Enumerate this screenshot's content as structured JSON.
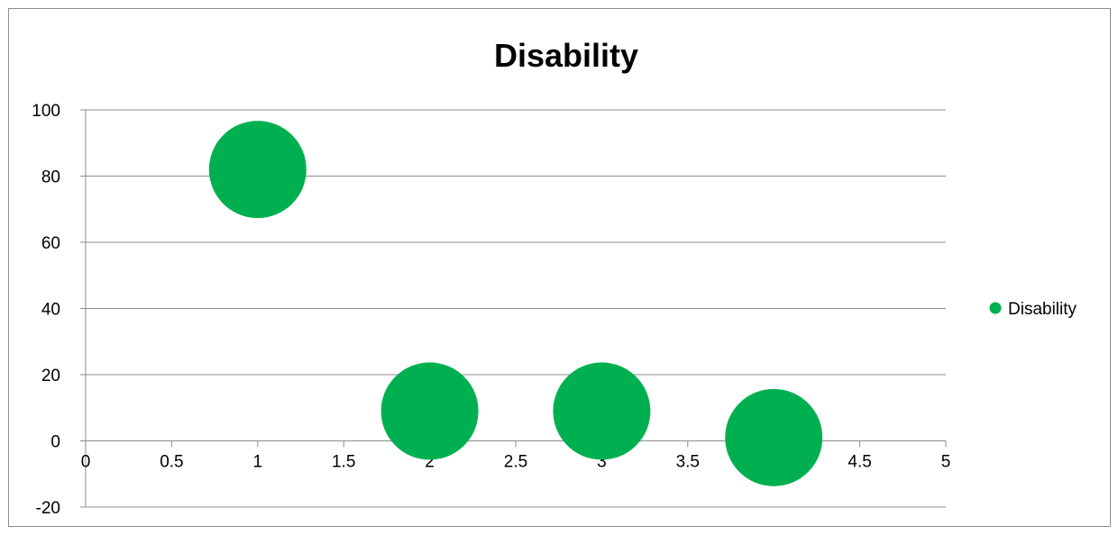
{
  "chart_data": {
    "type": "bubble",
    "title": "Disability",
    "xlabel": "",
    "ylabel": "",
    "xlim": [
      0,
      5
    ],
    "ylim": [
      -20,
      100
    ],
    "x_ticks": [
      "0",
      "0.5",
      "1",
      "1.5",
      "2",
      "2.5",
      "3",
      "3.5",
      "4",
      "4.5",
      "5"
    ],
    "y_ticks": [
      "-20",
      "0",
      "20",
      "40",
      "60",
      "80",
      "100"
    ],
    "grid": true,
    "legend_position": "right",
    "series": [
      {
        "name": "Disability",
        "color": "#00B050",
        "points": [
          {
            "x": 1,
            "y": 82
          },
          {
            "x": 2,
            "y": 9
          },
          {
            "x": 3,
            "y": 9
          },
          {
            "x": 4,
            "y": 1
          }
        ]
      }
    ]
  }
}
